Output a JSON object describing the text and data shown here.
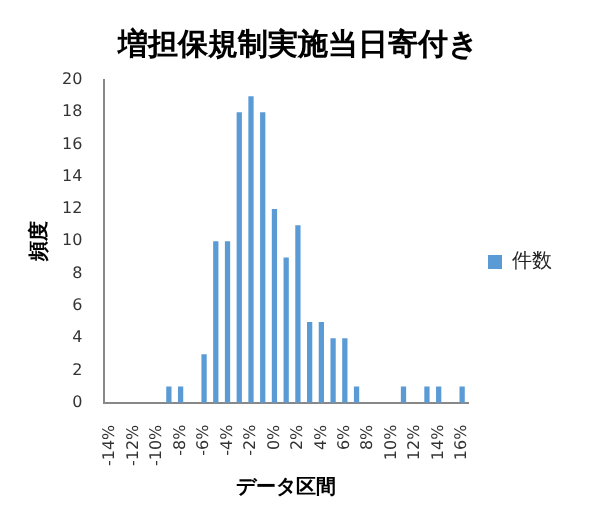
{
  "chart_data": {
    "type": "bar",
    "title": "増担保規制実施当日寄付き",
    "xlabel": "データ区間",
    "ylabel": "頻度",
    "categories": [
      "-14%",
      null,
      "-12%",
      null,
      "-10%",
      null,
      "-8%",
      null,
      "-6%",
      null,
      "-4%",
      null,
      "-2%",
      null,
      "0%",
      null,
      "2%",
      null,
      "4%",
      null,
      "6%",
      null,
      "8%",
      null,
      "10%",
      null,
      "12%",
      null,
      "14%",
      null,
      "16%"
    ],
    "series": [
      {
        "name": "件数",
        "color": "#5b9bd5",
        "values": [
          0,
          0,
          0,
          0,
          0,
          1,
          1,
          0,
          3,
          10,
          10,
          18,
          19,
          18,
          12,
          9,
          11,
          5,
          5,
          4,
          4,
          1,
          0,
          0,
          0,
          1,
          0,
          1,
          1,
          0,
          1
        ]
      }
    ],
    "ylim": [
      0,
      20
    ],
    "yticks": [
      0,
      2,
      4,
      6,
      8,
      10,
      12,
      14,
      16,
      18,
      20
    ],
    "grid": false,
    "legend": "right"
  }
}
